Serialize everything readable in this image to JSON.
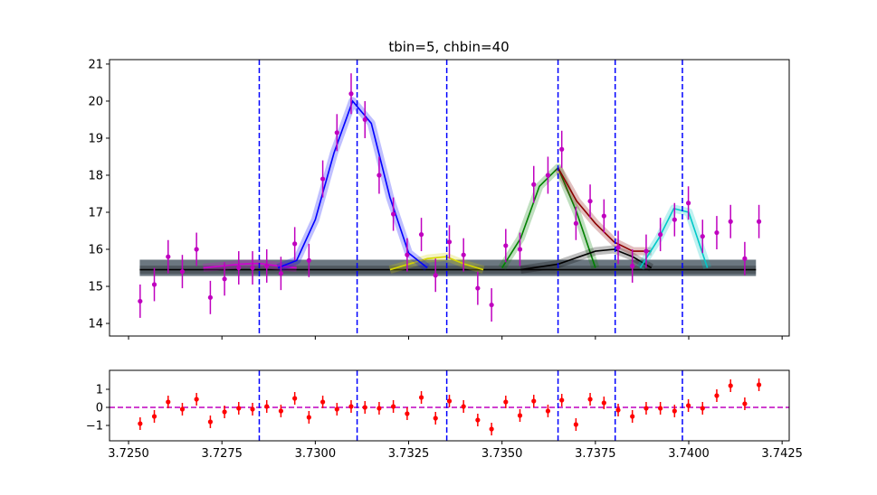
{
  "chart_data": [
    {
      "type": "errorbar",
      "title": "tbin=5, chbin=40",
      "xlim": [
        3.72449,
        3.74269
      ],
      "ylim": [
        13.66,
        21.12
      ],
      "yticks": [
        14,
        15,
        16,
        17,
        18,
        19,
        20,
        21
      ],
      "x": [
        3.72531,
        3.72569,
        3.72606,
        3.72644,
        3.72682,
        3.72719,
        3.72757,
        3.72795,
        3.72832,
        3.7287,
        3.72908,
        3.72945,
        3.72983,
        3.7302,
        3.73058,
        3.73096,
        3.73133,
        3.73171,
        3.73209,
        3.73246,
        3.73284,
        3.73322,
        3.73359,
        3.73397,
        3.73435,
        3.73472,
        3.7351,
        3.73548,
        3.73585,
        3.73623,
        3.7366,
        3.73698,
        3.73736,
        3.73773,
        3.73811,
        3.73849,
        3.73886,
        3.73924,
        3.73962,
        3.73999,
        3.74037,
        3.74075,
        3.74112,
        3.7415,
        3.74188
      ],
      "values": [
        14.6,
        15.05,
        15.8,
        15.4,
        16.0,
        14.7,
        15.2,
        15.5,
        15.5,
        15.55,
        15.35,
        16.15,
        15.7,
        17.9,
        19.15,
        20.2,
        19.5,
        18.0,
        16.95,
        15.85,
        16.4,
        15.3,
        16.2,
        15.85,
        14.95,
        14.5,
        16.1,
        16.0,
        17.75,
        18.0,
        18.7,
        16.7,
        17.3,
        16.9,
        16.05,
        15.55,
        15.95,
        16.4,
        16.8,
        17.25,
        16.35,
        16.45,
        16.75,
        15.75,
        16.75
      ],
      "errors": [
        0.45,
        0.45,
        0.45,
        0.45,
        0.45,
        0.45,
        0.45,
        0.45,
        0.45,
        0.45,
        0.45,
        0.45,
        0.45,
        0.5,
        0.5,
        0.55,
        0.5,
        0.5,
        0.45,
        0.45,
        0.45,
        0.45,
        0.45,
        0.45,
        0.45,
        0.45,
        0.45,
        0.45,
        0.5,
        0.5,
        0.5,
        0.45,
        0.45,
        0.45,
        0.45,
        0.45,
        0.45,
        0.45,
        0.45,
        0.45,
        0.45,
        0.45,
        0.45,
        0.45,
        0.45
      ],
      "color": "#bf00bf",
      "band": [
        15.28,
        15.72
      ],
      "band_x": [
        3.7253,
        3.7418
      ],
      "band_color": "#3a4a55",
      "vlines": [
        3.7285,
        3.73112,
        3.73352,
        3.7365,
        3.73803,
        3.73983
      ],
      "vline_color": "#0000ff",
      "models": [
        {
          "color": "#000000",
          "x": [
            3.7253,
            3.7418
          ],
          "values": [
            15.45,
            15.45
          ]
        },
        {
          "color": "#d000d0",
          "x": [
            3.727,
            3.728,
            3.7285,
            3.729,
            3.7295
          ],
          "values": [
            15.5,
            15.6,
            15.62,
            15.55,
            15.5
          ]
        },
        {
          "color": "#d4d400",
          "x": [
            3.732,
            3.7325,
            3.733,
            3.7335,
            3.734,
            3.7345
          ],
          "values": [
            15.45,
            15.6,
            15.75,
            15.8,
            15.6,
            15.45
          ]
        },
        {
          "color": "#0000ff",
          "x": [
            3.729,
            3.7295,
            3.73,
            3.7305,
            3.731,
            3.7315,
            3.732,
            3.7325,
            3.733
          ],
          "values": [
            15.5,
            15.7,
            16.8,
            18.6,
            20.0,
            19.4,
            17.4,
            15.9,
            15.5
          ]
        },
        {
          "color": "#008000",
          "x": [
            3.735,
            3.7355,
            3.736,
            3.7365,
            3.737,
            3.7375
          ],
          "values": [
            15.5,
            16.3,
            17.7,
            18.2,
            17.0,
            15.5
          ]
        },
        {
          "color": "#000000",
          "x": [
            3.7355,
            3.7365,
            3.7375,
            3.738,
            3.7385,
            3.739
          ],
          "values": [
            15.45,
            15.6,
            15.95,
            16.0,
            15.8,
            15.5
          ]
        },
        {
          "color": "#8b0000",
          "x": [
            3.7365,
            3.737,
            3.7375,
            3.738,
            3.7385,
            3.739
          ],
          "values": [
            18.2,
            17.3,
            16.7,
            16.2,
            15.95,
            15.95
          ]
        },
        {
          "color": "#00c8c8",
          "x": [
            3.7387,
            3.7392,
            3.7396,
            3.74,
            3.7405
          ],
          "values": [
            15.5,
            16.3,
            17.1,
            17.0,
            15.5
          ]
        }
      ]
    },
    {
      "type": "errorbar",
      "xlim": [
        3.72449,
        3.74269
      ],
      "ylim": [
        -1.85,
        2.05
      ],
      "xticks": [
        {
          "value": 3.725,
          "label": "3.7250"
        },
        {
          "value": 3.7275,
          "label": "3.7275"
        },
        {
          "value": 3.73,
          "label": "3.7300"
        },
        {
          "value": 3.7325,
          "label": "3.7325"
        },
        {
          "value": 3.735,
          "label": "3.7350"
        },
        {
          "value": 3.7375,
          "label": "3.7375"
        },
        {
          "value": 3.74,
          "label": "3.7400"
        },
        {
          "value": 3.7425,
          "label": "3.7425"
        }
      ],
      "yticks": [
        {
          "value": -1,
          "label": "−1"
        },
        0,
        1
      ],
      "x": [
        3.72531,
        3.72569,
        3.72606,
        3.72644,
        3.72682,
        3.72719,
        3.72757,
        3.72795,
        3.72832,
        3.7287,
        3.72908,
        3.72945,
        3.72983,
        3.7302,
        3.73058,
        3.73096,
        3.73133,
        3.73171,
        3.73209,
        3.73246,
        3.73284,
        3.73322,
        3.73359,
        3.73397,
        3.73435,
        3.73472,
        3.7351,
        3.73548,
        3.73585,
        3.73623,
        3.7366,
        3.73698,
        3.73736,
        3.73773,
        3.73811,
        3.73849,
        3.73886,
        3.73924,
        3.73962,
        3.73999,
        3.74037,
        3.74075,
        3.74112,
        3.7415,
        3.74188
      ],
      "values": [
        -0.9,
        -0.5,
        0.3,
        -0.1,
        0.45,
        -0.8,
        -0.25,
        -0.05,
        -0.1,
        0.05,
        -0.2,
        0.5,
        -0.55,
        0.3,
        -0.1,
        0.05,
        0.0,
        -0.05,
        0.05,
        -0.35,
        0.55,
        -0.6,
        0.35,
        0.05,
        -0.7,
        -1.2,
        0.3,
        -0.45,
        0.35,
        -0.2,
        0.4,
        -0.95,
        0.45,
        0.25,
        -0.15,
        -0.5,
        -0.05,
        -0.05,
        -0.2,
        0.1,
        -0.05,
        0.65,
        1.2,
        0.2,
        1.25
      ],
      "errors": [
        0.35,
        0.35,
        0.35,
        0.35,
        0.35,
        0.35,
        0.35,
        0.35,
        0.35,
        0.35,
        0.35,
        0.35,
        0.35,
        0.35,
        0.35,
        0.35,
        0.35,
        0.35,
        0.35,
        0.35,
        0.35,
        0.35,
        0.35,
        0.35,
        0.35,
        0.35,
        0.35,
        0.35,
        0.35,
        0.35,
        0.35,
        0.35,
        0.35,
        0.35,
        0.35,
        0.35,
        0.35,
        0.35,
        0.35,
        0.35,
        0.35,
        0.35,
        0.35,
        0.35,
        0.35
      ],
      "color": "#ff0000",
      "hline": 0,
      "hline_color": "#bf00bf",
      "vlines": [
        3.7285,
        3.73112,
        3.73352,
        3.7365,
        3.73803,
        3.73983
      ],
      "vline_color": "#0000ff"
    }
  ]
}
